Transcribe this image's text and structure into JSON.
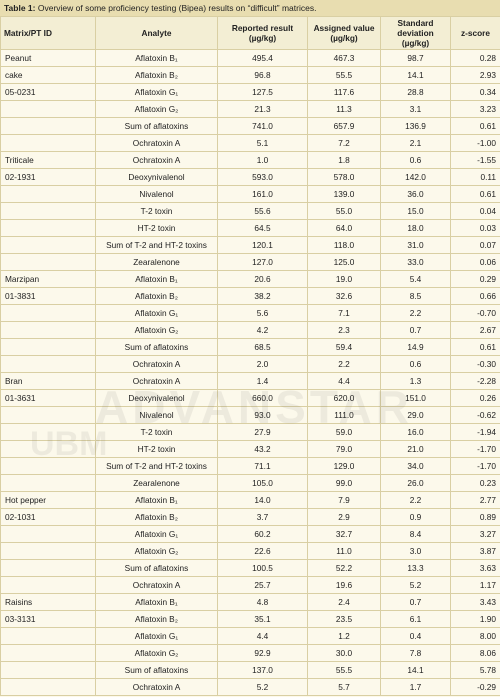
{
  "caption": {
    "label": "Table 1:",
    "text": "Overview of some proficiency testing (Bipea) results on “difficult” matrices."
  },
  "table": {
    "headers": [
      [
        "Matrix/PT ID"
      ],
      [
        "Analyte"
      ],
      [
        "Reported result",
        "(µg/kg)"
      ],
      [
        "Assigned value",
        "(µg/kg)"
      ],
      [
        "Standard",
        "deviation (µg/kg)"
      ],
      [
        "z-score"
      ]
    ],
    "rows": [
      [
        "Peanut",
        "Aflatoxin B₁",
        "495.4",
        "467.3",
        "98.7",
        "0.28"
      ],
      [
        "cake",
        "Aflatoxin B₂",
        "96.8",
        "55.5",
        "14.1",
        "2.93"
      ],
      [
        "05-0231",
        "Aflatoxin G₁",
        "127.5",
        "117.6",
        "28.8",
        "0.34"
      ],
      [
        null,
        "Aflatoxin G₂",
        "21.3",
        "11.3",
        "3.1",
        "3.23"
      ],
      [
        null,
        "Sum of aflatoxins",
        "741.0",
        "657.9",
        "136.9",
        "0.61"
      ],
      [
        null,
        "Ochratoxin A",
        "5.1",
        "7.2",
        "2.1",
        "-1.00"
      ],
      [
        "Triticale",
        "Ochratoxin A",
        "1.0",
        "1.8",
        "0.6",
        "-1.55"
      ],
      [
        "02-1931",
        "Deoxynivalenol",
        "593.0",
        "578.0",
        "142.0",
        "0.11"
      ],
      [
        null,
        "Nivalenol",
        "161.0",
        "139.0",
        "36.0",
        "0.61"
      ],
      [
        null,
        "T-2 toxin",
        "55.6",
        "55.0",
        "15.0",
        "0.04"
      ],
      [
        null,
        "HT-2 toxin",
        "64.5",
        "64.0",
        "18.0",
        "0.03"
      ],
      [
        null,
        "Sum of T-2 and HT-2 toxins",
        "120.1",
        "118.0",
        "31.0",
        "0.07"
      ],
      [
        null,
        "Zearalenone",
        "127.0",
        "125.0",
        "33.0",
        "0.06"
      ],
      [
        "Marzipan",
        "Aflatoxin B₁",
        "20.6",
        "19.0",
        "5.4",
        "0.29"
      ],
      [
        "01-3831",
        "Aflatoxin B₂",
        "38.2",
        "32.6",
        "8.5",
        "0.66"
      ],
      [
        null,
        "Aflatoxin G₁",
        "5.6",
        "7.1",
        "2.2",
        "-0.70"
      ],
      [
        null,
        "Aflatoxin G₂",
        "4.2",
        "2.3",
        "0.7",
        "2.67"
      ],
      [
        null,
        "Sum of aflatoxins",
        "68.5",
        "59.4",
        "14.9",
        "0.61"
      ],
      [
        null,
        "Ochratoxin A",
        "2.0",
        "2.2",
        "0.6",
        "-0.30"
      ],
      [
        "Bran",
        "Ochratoxin A",
        "1.4",
        "4.4",
        "1.3",
        "-2.28"
      ],
      [
        "01-3631",
        "Deoxynivalenol",
        "660.0",
        "620.0",
        "151.0",
        "0.26"
      ],
      [
        null,
        "Nivalenol",
        "93.0",
        "111.0",
        "29.0",
        "-0.62"
      ],
      [
        null,
        "T-2 toxin",
        "27.9",
        "59.0",
        "16.0",
        "-1.94"
      ],
      [
        null,
        "HT-2 toxin",
        "43.2",
        "79.0",
        "21.0",
        "-1.70"
      ],
      [
        null,
        "Sum of T-2 and HT-2 toxins",
        "71.1",
        "129.0",
        "34.0",
        "-1.70"
      ],
      [
        null,
        "Zearalenone",
        "105.0",
        "99.0",
        "26.0",
        "0.23"
      ],
      [
        "Hot pepper",
        "Aflatoxin B₁",
        "14.0",
        "7.9",
        "2.2",
        "2.77"
      ],
      [
        "02-1031",
        "Aflatoxin B₂",
        "3.7",
        "2.9",
        "0.9",
        "0.89"
      ],
      [
        null,
        "Aflatoxin G₁",
        "60.2",
        "32.7",
        "8.4",
        "3.27"
      ],
      [
        null,
        "Aflatoxin G₂",
        "22.6",
        "11.0",
        "3.0",
        "3.87"
      ],
      [
        null,
        "Sum of aflatoxins",
        "100.5",
        "52.2",
        "13.3",
        "3.63"
      ],
      [
        null,
        "Ochratoxin A",
        "25.7",
        "19.6",
        "5.2",
        "1.17"
      ],
      [
        "Raisins",
        "Aflatoxin B₁",
        "4.8",
        "2.4",
        "0.7",
        "3.43"
      ],
      [
        "03-3131",
        "Aflatoxin B₂",
        "35.1",
        "23.5",
        "6.1",
        "1.90"
      ],
      [
        null,
        "Aflatoxin G₁",
        "4.4",
        "1.2",
        "0.4",
        "8.00"
      ],
      [
        null,
        "Aflatoxin G₂",
        "92.9",
        "30.0",
        "7.8",
        "8.06"
      ],
      [
        null,
        "Sum of aflatoxins",
        "137.0",
        "55.5",
        "14.1",
        "5.78"
      ],
      [
        null,
        "Ochratoxin A",
        "5.2",
        "5.7",
        "1.7",
        "-0.29"
      ]
    ]
  },
  "watermark": [
    "ADVANSTAR",
    "UBM"
  ]
}
